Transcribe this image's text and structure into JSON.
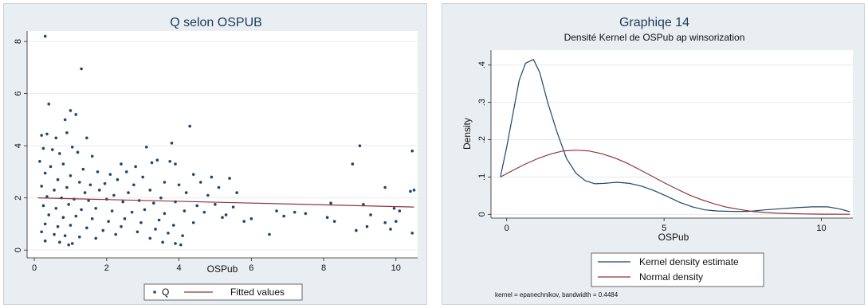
{
  "chart_data": [
    {
      "type": "scatter",
      "title": "Q selon OSPUB",
      "xlabel": "OSPub",
      "ylabel": "",
      "xlim": [
        -0.2,
        10.6
      ],
      "ylim": [
        -0.3,
        8.4
      ],
      "xticks": [
        0,
        2,
        4,
        6,
        8,
        10
      ],
      "yticks": [
        0,
        2,
        4,
        6,
        8
      ],
      "xtick_labels": [
        "0",
        "2",
        "4",
        "6",
        "8",
        "10"
      ],
      "ytick_labels": [
        "0",
        "2",
        "4",
        "6",
        "8"
      ],
      "grid": "horizontal",
      "legend_position": "bottom",
      "series": [
        {
          "name": "Q",
          "kind": "points",
          "color": "#1a476f",
          "points": [
            [
              0.3,
              8.2
            ],
            [
              1.3,
              6.95
            ],
            [
              0.4,
              5.6
            ],
            [
              1.0,
              5.35
            ],
            [
              1.15,
              5.2
            ],
            [
              0.85,
              5.0
            ],
            [
              4.3,
              4.75
            ],
            [
              0.2,
              4.4
            ],
            [
              0.35,
              4.45
            ],
            [
              0.6,
              4.3
            ],
            [
              0.9,
              4.5
            ],
            [
              1.45,
              4.3
            ],
            [
              3.8,
              4.1
            ],
            [
              9.0,
              4.0
            ],
            [
              3.1,
              3.95
            ],
            [
              0.25,
              3.9
            ],
            [
              0.5,
              3.85
            ],
            [
              0.7,
              3.7
            ],
            [
              1.05,
              3.95
            ],
            [
              1.2,
              3.75
            ],
            [
              1.6,
              3.6
            ],
            [
              3.4,
              3.45
            ],
            [
              3.75,
              3.4
            ],
            [
              3.9,
              3.3
            ],
            [
              2.4,
              3.3
            ],
            [
              2.8,
              3.2
            ],
            [
              3.25,
              3.35
            ],
            [
              8.8,
              3.3
            ],
            [
              10.45,
              3.8
            ],
            [
              0.15,
              3.4
            ],
            [
              0.45,
              3.2
            ],
            [
              0.8,
              3.3
            ],
            [
              1.35,
              3.1
            ],
            [
              1.75,
              3.0
            ],
            [
              2.1,
              2.9
            ],
            [
              2.55,
              3.0
            ],
            [
              3.0,
              2.8
            ],
            [
              4.4,
              2.9
            ],
            [
              4.9,
              2.8
            ],
            [
              5.4,
              2.75
            ],
            [
              0.3,
              2.95
            ],
            [
              0.65,
              2.7
            ],
            [
              1.0,
              2.85
            ],
            [
              1.25,
              2.6
            ],
            [
              1.55,
              2.5
            ],
            [
              1.95,
              2.55
            ],
            [
              2.3,
              2.7
            ],
            [
              2.75,
              2.5
            ],
            [
              3.6,
              2.6
            ],
            [
              4.0,
              2.5
            ],
            [
              4.6,
              2.6
            ],
            [
              5.1,
              2.4
            ],
            [
              9.7,
              2.4
            ],
            [
              10.5,
              2.3
            ],
            [
              0.2,
              2.45
            ],
            [
              0.55,
              2.3
            ],
            [
              0.9,
              2.4
            ],
            [
              1.4,
              2.2
            ],
            [
              1.8,
              2.3
            ],
            [
              2.2,
              2.1
            ],
            [
              2.6,
              2.2
            ],
            [
              3.2,
              2.3
            ],
            [
              3.5,
              2.0
            ],
            [
              4.2,
              2.2
            ],
            [
              4.8,
              2.1
            ],
            [
              5.6,
              2.2
            ],
            [
              10.4,
              2.25
            ],
            [
              0.35,
              2.05
            ],
            [
              0.75,
              2.0
            ],
            [
              1.1,
              1.95
            ],
            [
              1.5,
              1.9
            ],
            [
              2.0,
              1.95
            ],
            [
              2.45,
              1.85
            ],
            [
              2.9,
              1.9
            ],
            [
              3.3,
              1.8
            ],
            [
              3.9,
              1.85
            ],
            [
              4.5,
              1.7
            ],
            [
              5.0,
              1.75
            ],
            [
              5.5,
              1.65
            ],
            [
              6.7,
              1.5
            ],
            [
              7.2,
              1.45
            ],
            [
              8.2,
              1.8
            ],
            [
              9.1,
              1.75
            ],
            [
              9.95,
              1.6
            ],
            [
              0.25,
              1.7
            ],
            [
              0.6,
              1.6
            ],
            [
              0.95,
              1.75
            ],
            [
              1.3,
              1.55
            ],
            [
              1.7,
              1.6
            ],
            [
              2.15,
              1.5
            ],
            [
              2.7,
              1.45
            ],
            [
              3.05,
              1.55
            ],
            [
              3.6,
              1.4
            ],
            [
              4.15,
              1.5
            ],
            [
              4.7,
              1.45
            ],
            [
              5.3,
              1.35
            ],
            [
              6.0,
              1.2
            ],
            [
              6.9,
              1.3
            ],
            [
              7.5,
              1.4
            ],
            [
              8.1,
              1.25
            ],
            [
              9.3,
              1.35
            ],
            [
              10.1,
              1.5
            ],
            [
              0.4,
              1.35
            ],
            [
              0.8,
              1.25
            ],
            [
              1.15,
              1.3
            ],
            [
              1.6,
              1.2
            ],
            [
              2.05,
              1.1
            ],
            [
              2.5,
              1.2
            ],
            [
              2.95,
              1.05
            ],
            [
              3.45,
              1.15
            ],
            [
              3.85,
              0.95
            ],
            [
              4.4,
              1.05
            ],
            [
              5.2,
              1.25
            ],
            [
              5.8,
              1.1
            ],
            [
              8.3,
              1.1
            ],
            [
              9.7,
              1.05
            ],
            [
              0.3,
              1.0
            ],
            [
              0.65,
              0.9
            ],
            [
              1.0,
              0.95
            ],
            [
              1.45,
              0.85
            ],
            [
              1.9,
              0.75
            ],
            [
              2.4,
              0.9
            ],
            [
              2.85,
              0.7
            ],
            [
              3.35,
              0.8
            ],
            [
              3.7,
              0.65
            ],
            [
              4.1,
              0.55
            ],
            [
              6.5,
              0.6
            ],
            [
              8.9,
              0.75
            ],
            [
              9.2,
              0.9
            ],
            [
              10.45,
              0.65
            ],
            [
              0.2,
              0.7
            ],
            [
              0.55,
              0.6
            ],
            [
              0.85,
              0.55
            ],
            [
              1.25,
              0.5
            ],
            [
              1.7,
              0.45
            ],
            [
              2.25,
              0.6
            ],
            [
              3.2,
              0.45
            ],
            [
              3.55,
              0.3
            ],
            [
              3.9,
              0.25
            ],
            [
              4.05,
              0.2
            ],
            [
              0.3,
              0.35
            ],
            [
              0.7,
              0.3
            ],
            [
              1.05,
              0.25
            ],
            [
              0.95,
              0.2
            ],
            [
              9.85,
              0.8
            ],
            [
              10.0,
              1.1
            ]
          ]
        },
        {
          "name": "Fitted values",
          "kind": "line",
          "color": "#90353b",
          "points": [
            [
              0.1,
              2.0
            ],
            [
              10.5,
              1.65
            ]
          ]
        }
      ]
    },
    {
      "type": "line",
      "title": "Graphiqe 14",
      "subtitle": "Densité Kernel de OSPub ap winsorization",
      "xlabel": "OSPub",
      "ylabel": "Density",
      "xlim": [
        -0.5,
        11.0
      ],
      "ylim": [
        -0.01,
        0.44
      ],
      "xticks": [
        0,
        5,
        10
      ],
      "yticks": [
        0,
        0.1,
        0.2,
        0.3,
        0.4
      ],
      "xtick_labels": [
        "0",
        "5",
        "10"
      ],
      "ytick_labels": [
        "0",
        ".1",
        ".2",
        ".3",
        ".4"
      ],
      "grid": "horizontal",
      "legend_position": "bottom",
      "note": "kernel = epanechnikov, bandwidth = 0.4484",
      "series": [
        {
          "name": "Kernel density estimate",
          "color": "#1a476f",
          "points": [
            [
              -0.2,
              0.1
            ],
            [
              0.0,
              0.18
            ],
            [
              0.2,
              0.27
            ],
            [
              0.4,
              0.36
            ],
            [
              0.6,
              0.405
            ],
            [
              0.85,
              0.415
            ],
            [
              1.05,
              0.38
            ],
            [
              1.3,
              0.3
            ],
            [
              1.6,
              0.22
            ],
            [
              1.9,
              0.15
            ],
            [
              2.2,
              0.11
            ],
            [
              2.5,
              0.09
            ],
            [
              2.8,
              0.082
            ],
            [
              3.1,
              0.083
            ],
            [
              3.5,
              0.086
            ],
            [
              3.9,
              0.083
            ],
            [
              4.3,
              0.075
            ],
            [
              4.7,
              0.063
            ],
            [
              5.1,
              0.048
            ],
            [
              5.5,
              0.032
            ],
            [
              5.9,
              0.02
            ],
            [
              6.3,
              0.012
            ],
            [
              6.7,
              0.009
            ],
            [
              7.2,
              0.008
            ],
            [
              7.7,
              0.008
            ],
            [
              8.2,
              0.012
            ],
            [
              8.7,
              0.015
            ],
            [
              9.2,
              0.018
            ],
            [
              9.7,
              0.02
            ],
            [
              10.2,
              0.02
            ],
            [
              10.6,
              0.014
            ],
            [
              10.9,
              0.007
            ]
          ]
        },
        {
          "name": "Normal density",
          "color": "#90353b",
          "points": [
            [
              -0.2,
              0.1
            ],
            [
              0.2,
              0.118
            ],
            [
              0.6,
              0.135
            ],
            [
              1.0,
              0.15
            ],
            [
              1.4,
              0.162
            ],
            [
              1.8,
              0.17
            ],
            [
              2.2,
              0.172
            ],
            [
              2.6,
              0.17
            ],
            [
              3.0,
              0.163
            ],
            [
              3.4,
              0.152
            ],
            [
              3.8,
              0.138
            ],
            [
              4.2,
              0.121
            ],
            [
              4.6,
              0.103
            ],
            [
              5.0,
              0.085
            ],
            [
              5.4,
              0.068
            ],
            [
              5.8,
              0.052
            ],
            [
              6.2,
              0.039
            ],
            [
              6.6,
              0.028
            ],
            [
              7.0,
              0.019
            ],
            [
              7.4,
              0.013
            ],
            [
              7.8,
              0.008
            ],
            [
              8.2,
              0.005
            ],
            [
              8.6,
              0.003
            ],
            [
              9.0,
              0.002
            ],
            [
              9.5,
              0.001
            ],
            [
              10.0,
              0.0005
            ],
            [
              10.9,
              0.0002
            ]
          ]
        }
      ]
    }
  ]
}
